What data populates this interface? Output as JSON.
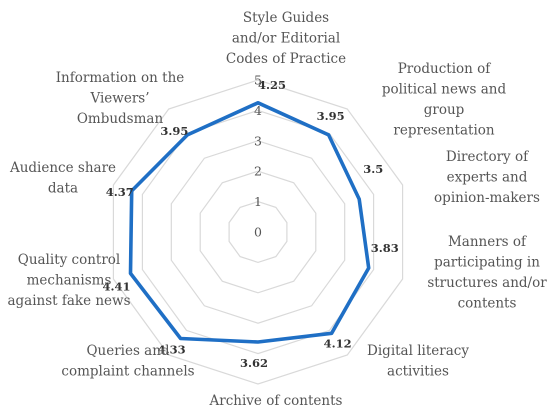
{
  "chart_data": {
    "type": "radar",
    "title": "",
    "categories": [
      "Style Guides and/or Editorial Codes of Practice",
      "Production of political news and group representation",
      "Directory of experts and opinion-makers",
      "Manners of participating in structures and/or contents",
      "Digital literacy activities",
      "Archive of contents",
      "Queries and complaint channels",
      "Quality control mechanisms against fake news",
      "Audience share data",
      "Information on the Viewers' Ombudsman"
    ],
    "category_lines": [
      [
        "Style Guides",
        "and/or Editorial",
        "Codes of Practice"
      ],
      [
        "Production of",
        "political news and",
        "group",
        "representation"
      ],
      [
        "Directory of",
        "experts and",
        "opinion-makers"
      ],
      [
        "Manners of",
        "participating in",
        "structures and/or",
        "contents"
      ],
      [
        "Digital literacy",
        "activities"
      ],
      [
        "Archive of contents"
      ],
      [
        "Queries and",
        "complaint channels"
      ],
      [
        "Quality control",
        "mechanisms",
        "against fake news"
      ],
      [
        "Audience share",
        "data"
      ],
      [
        "Information on the",
        "Viewers’",
        "Ombudsman"
      ]
    ],
    "values": [
      4.25,
      3.95,
      3.5,
      3.83,
      4.12,
      3.62,
      4.33,
      4.41,
      4.37,
      3.95
    ],
    "value_labels": [
      "4.25",
      "3.95",
      "3.5",
      "3.83",
      "4.12",
      "3.62",
      "4.33",
      "4.41",
      "4.37",
      "3.95"
    ],
    "radial_ticks": [
      "0",
      "1",
      "2",
      "3",
      "4",
      "5"
    ],
    "range": [
      0,
      5
    ],
    "grid": true,
    "legend": "none",
    "colors": {
      "series": "#1f6fc5",
      "grid": "#d9d9d9",
      "text": "#555555"
    }
  }
}
